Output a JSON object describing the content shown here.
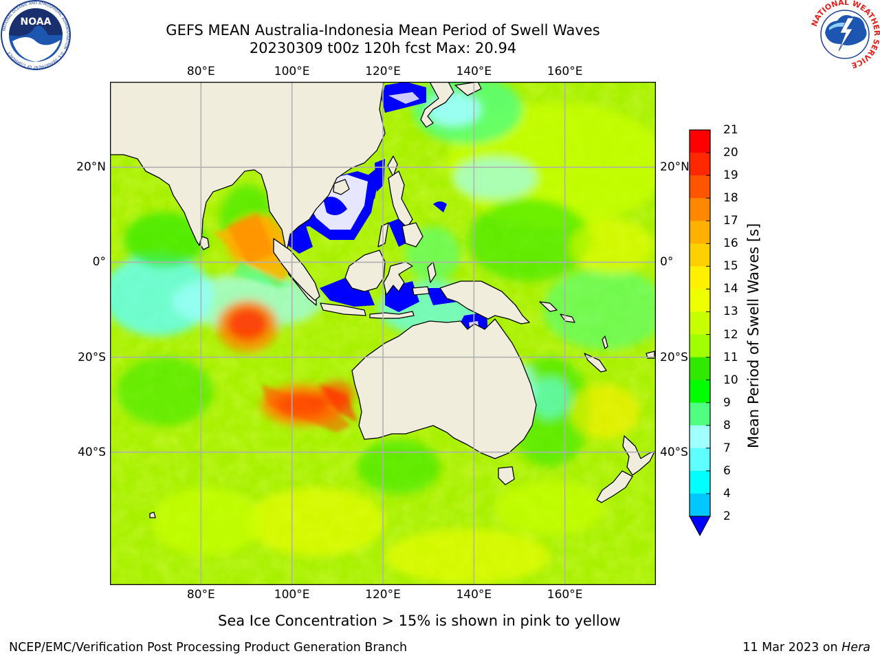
{
  "header": {
    "title_line1": "GEFS MEAN Australia-Indonesia Mean Period of Swell Waves",
    "title_line2": "20230309 t00z 120h fcst   Max: 20.94"
  },
  "logos": {
    "noara_icon": "noaa-logo",
    "nws_icon": "nws-logo",
    "noaa_text": "NOAA",
    "noaa_ring_text": "NATIONAL OCEANIC AND ATMOSPHERIC ADMINISTRATION · U.S. DEPARTMENT OF COMMERCE",
    "nws_ring_text": "NATIONAL WEATHER SERVICE"
  },
  "map": {
    "lon_ticks": [
      {
        "lon": 80,
        "label": "80°E"
      },
      {
        "lon": 100,
        "label": "100°E"
      },
      {
        "lon": 120,
        "label": "120°E"
      },
      {
        "lon": 140,
        "label": "140°E"
      },
      {
        "lon": 160,
        "label": "160°E"
      }
    ],
    "lat_ticks": [
      {
        "lat": 20,
        "label": "20°N"
      },
      {
        "lat": 0,
        "label": "0°"
      },
      {
        "lat": -20,
        "label": "20°S"
      },
      {
        "lat": -40,
        "label": "40°S"
      }
    ],
    "extent": {
      "lon_min": 60,
      "lon_max": 180,
      "lat_min": -68,
      "lat_max": 38
    },
    "land_color": "#f0eddc",
    "grid_color": "#b0b0b0"
  },
  "colorbar": {
    "title": "Mean Period of Swell Waves [s]",
    "labels": [
      "2",
      "4",
      "6",
      "7",
      "8",
      "9",
      "10",
      "11",
      "12",
      "13",
      "14",
      "15",
      "16",
      "17",
      "18",
      "19",
      "20",
      "21"
    ],
    "colors": [
      "#0060ff",
      "#00c8ff",
      "#00ffff",
      "#60ffff",
      "#a0ffff",
      "#50ff80",
      "#00ff00",
      "#30e800",
      "#a0ff00",
      "#c8ff00",
      "#eeff00",
      "#fff000",
      "#ffd000",
      "#ffb000",
      "#ff8800",
      "#ff5500",
      "#ff2800",
      "#ff0000"
    ],
    "under_color": "#0000ff"
  },
  "notes": {
    "sea_ice": "Sea Ice Concentration > 15% is shown in pink to yellow"
  },
  "footer": {
    "left": "NCEP/EMC/Verification Post Processing Product Generation Branch",
    "date": "11 Mar 2023 on ",
    "host": "Hera"
  }
}
